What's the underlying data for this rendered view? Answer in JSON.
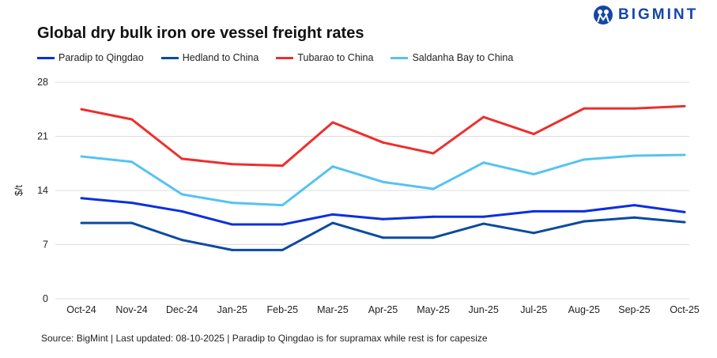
{
  "header": {
    "brand": "BIGMINT"
  },
  "chart_data": {
    "type": "line",
    "title": "Global dry bulk iron ore vessel freight rates",
    "xlabel": "",
    "ylabel": "$/t",
    "ylim": [
      0,
      28
    ],
    "yticks": [
      0,
      7,
      14,
      21,
      28
    ],
    "grid": true,
    "legend_position": "top-left",
    "categories": [
      "Oct-24",
      "Nov-24",
      "Dec-24",
      "Jan-25",
      "Feb-25",
      "Mar-25",
      "Apr-25",
      "May-25",
      "Jun-25",
      "Jul-25",
      "Aug-25",
      "Sep-25",
      "Oct-25"
    ],
    "series": [
      {
        "name": "Paradip to Qingdao",
        "color": "#0a2fe0",
        "values": [
          13.0,
          12.4,
          11.3,
          9.6,
          9.6,
          10.9,
          10.3,
          10.6,
          10.6,
          11.3,
          11.3,
          12.1,
          11.2
        ]
      },
      {
        "name": "Hedland to China",
        "color": "#0b4aa0",
        "values": [
          9.8,
          9.8,
          7.6,
          6.3,
          6.3,
          9.8,
          7.9,
          7.9,
          9.7,
          8.5,
          10.0,
          10.5,
          9.9
        ]
      },
      {
        "name": "Tubarao to China",
        "color": "#ee2e2e",
        "values": [
          24.5,
          23.2,
          18.1,
          17.4,
          17.2,
          22.8,
          20.2,
          18.8,
          23.5,
          21.3,
          24.6,
          24.6,
          24.9
        ]
      },
      {
        "name": "Saldanha Bay to China",
        "color": "#55c3f2",
        "values": [
          18.4,
          17.7,
          13.5,
          12.4,
          12.1,
          17.1,
          15.1,
          14.2,
          17.6,
          16.1,
          18.0,
          18.5,
          18.6
        ]
      }
    ]
  },
  "footer": {
    "source": "Source: BigMint | Last updated: 08-10-2025 | Paradip to Qingdao is for supramax while rest is for capesize"
  }
}
